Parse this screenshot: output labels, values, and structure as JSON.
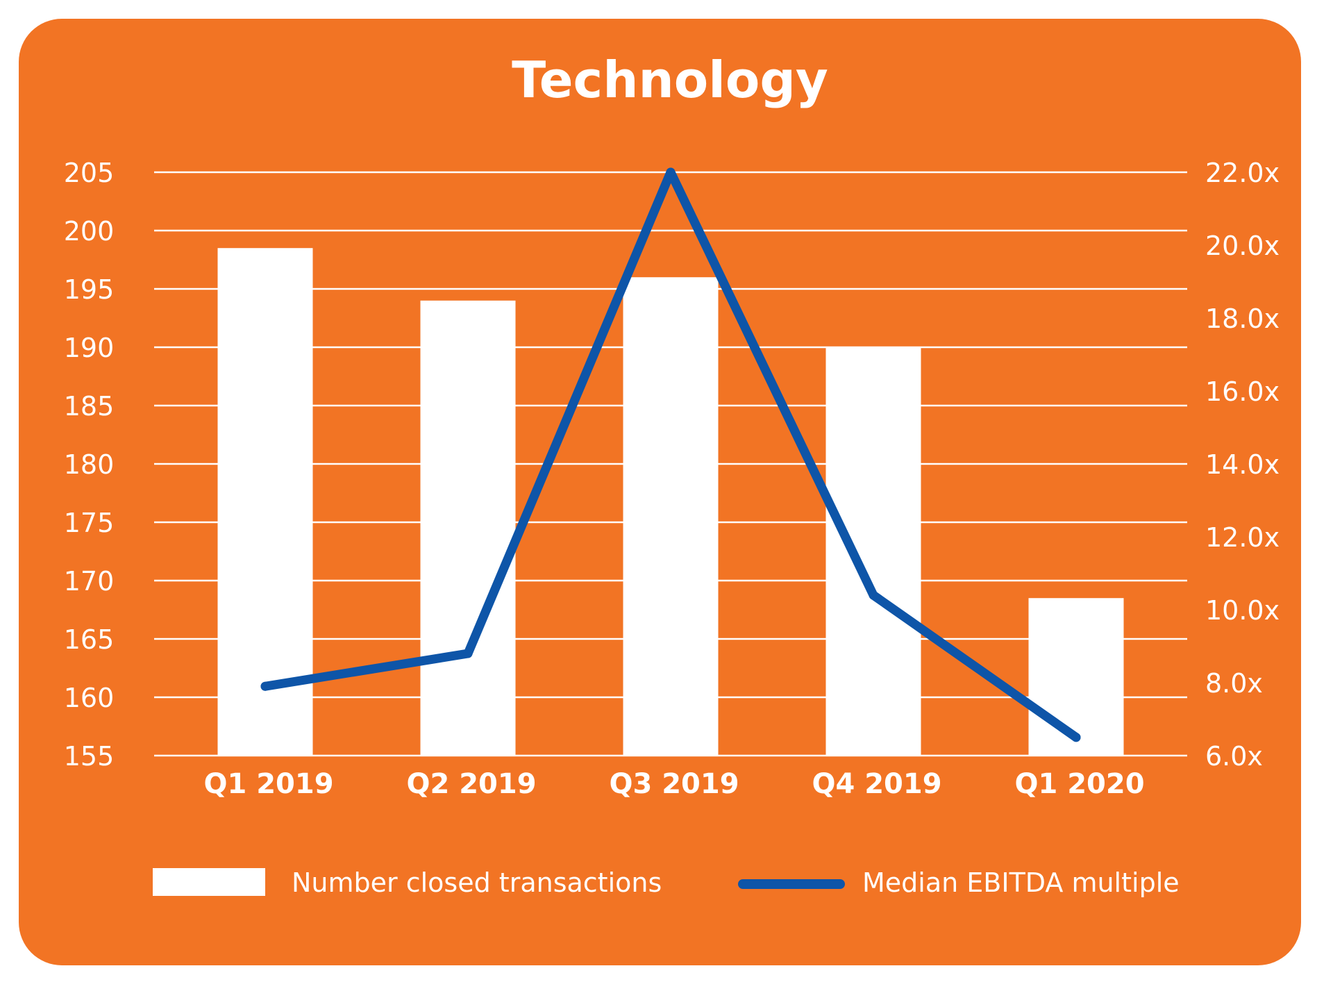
{
  "chart_data": {
    "type": "bar",
    "title": "Technology",
    "categories": [
      "Q1 2019",
      "Q2 2019",
      "Q3 2019",
      "Q4 2019",
      "Q1 2020"
    ],
    "series": [
      {
        "name": "Number closed transactions",
        "type": "bar",
        "axis": "left",
        "color": "#FFFFFF",
        "values": [
          198.5,
          194,
          196,
          190,
          168.5
        ]
      },
      {
        "name": "Median EBITDA multiple",
        "type": "line",
        "axis": "right",
        "color": "#0E55A8",
        "values": [
          7.9,
          8.8,
          22.0,
          10.4,
          6.5
        ]
      }
    ],
    "y_left": {
      "ylim": [
        155,
        205
      ],
      "ticks": [
        "155",
        "160",
        "165",
        "170",
        "175",
        "180",
        "185",
        "190",
        "195",
        "200",
        "205"
      ]
    },
    "y_right": {
      "ylim": [
        6,
        22
      ],
      "ticks": [
        "6.0x",
        "8.0x",
        "10.0x",
        "12.0x",
        "14.0x",
        "16.0x",
        "18.0x",
        "20.0x",
        "22.0x"
      ]
    },
    "grid": true,
    "legend_position": "bottom",
    "colors": {
      "background": "#F27424",
      "bars": "#FFFFFF",
      "line": "#0E55A8",
      "text": "#FFFFFF"
    }
  }
}
